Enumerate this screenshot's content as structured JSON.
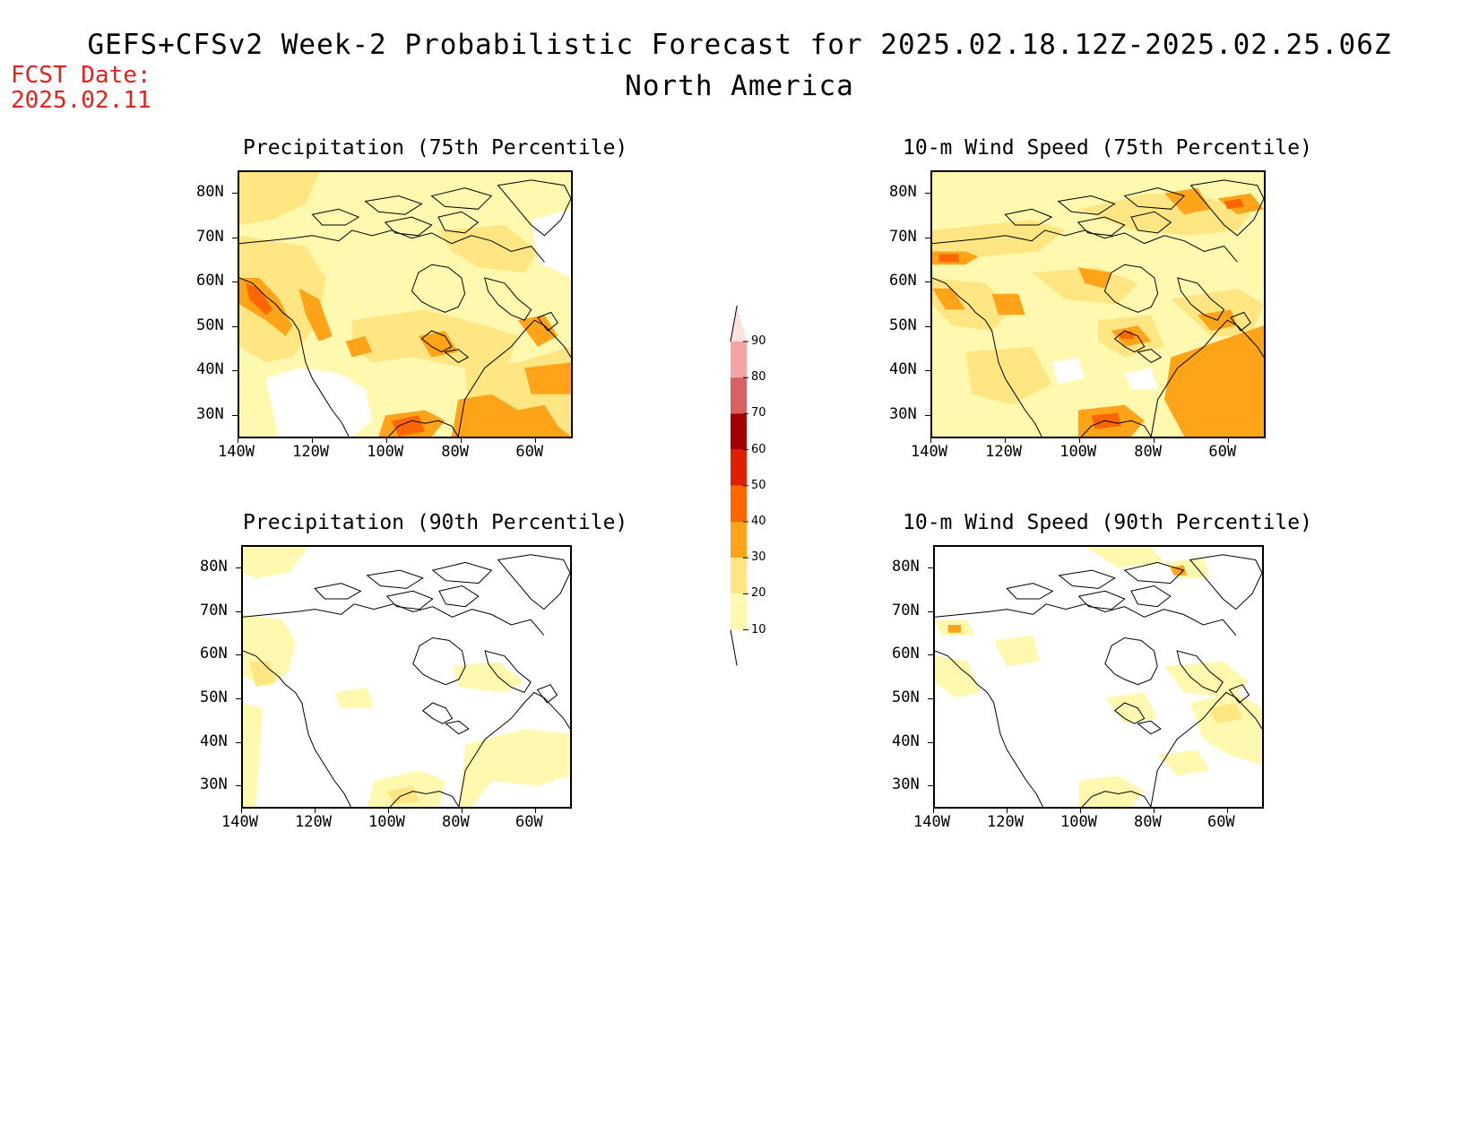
{
  "header": {
    "title": "GEFS+CFSv2 Week-2 Probabilistic Forecast for 2025.02.18.12Z-2025.02.25.06Z",
    "subtitle": "North America",
    "fcst_label": "FCST Date:",
    "fcst_date": "2025.02.11"
  },
  "axes": {
    "lat_labels": [
      "80N",
      "70N",
      "60N",
      "50N",
      "40N",
      "30N"
    ],
    "lon_labels": [
      "140W",
      "120W",
      "100W",
      "80W",
      "60W"
    ]
  },
  "panels": [
    {
      "title": "Precipitation (75th Percentile)"
    },
    {
      "title": "10-m Wind Speed (75th Percentile)"
    },
    {
      "title": "Precipitation (90th Percentile)"
    },
    {
      "title": "10-m Wind Speed (90th Percentile)"
    }
  ],
  "colorbar": {
    "levels": [
      "10",
      "20",
      "30",
      "40",
      "50",
      "60",
      "70",
      "80",
      "90"
    ],
    "colors": [
      "#fff9b0",
      "#ffe682",
      "#ffa319",
      "#ff6600",
      "#e01e00",
      "#a50000",
      "#d86262",
      "#f5a3a3",
      "#ffe0e0"
    ]
  },
  "palette": {
    "fcst_text": "#e8201b",
    "light_yellow": "#fff9b0",
    "yellow": "#ffe682",
    "orange": "#ffa319",
    "dark_orange": "#ff6600",
    "red": "#e01e00"
  }
}
